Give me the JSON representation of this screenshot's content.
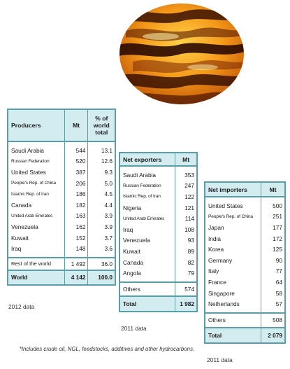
{
  "producers": {
    "headers": [
      "Producers",
      "Mt",
      "% of world total"
    ],
    "rows": [
      [
        "Saudi Arabia",
        "544",
        "13.1"
      ],
      [
        "Russian Federation",
        "520",
        "12.6"
      ],
      [
        "United States",
        "387",
        "9.3"
      ],
      [
        "People's Rep. of China",
        "206",
        "5.0"
      ],
      [
        "Islamic Rep. of Iran",
        "186",
        "4.5"
      ],
      [
        "Canada",
        "182",
        "4.4"
      ],
      [
        "United Arab Emirates",
        "163",
        "3.9"
      ],
      [
        "Venezuela",
        "162",
        "3.9"
      ],
      [
        "Kuwait",
        "152",
        "3.7"
      ],
      [
        "Iraq",
        "148",
        "3.6"
      ]
    ],
    "rest": [
      "Rest of the world",
      "1 492",
      "36.0"
    ],
    "total": [
      "World",
      "4 142",
      "100.0"
    ],
    "caption": "2012 data"
  },
  "exporters": {
    "headers": [
      "Net exporters",
      "Mt"
    ],
    "rows": [
      [
        "Saudi Arabia",
        "353"
      ],
      [
        "Russian Federation",
        "247"
      ],
      [
        "Islamic Rep. of Iran",
        "122"
      ],
      [
        "Nigeria",
        "121"
      ],
      [
        "United Arab Emirates",
        "114"
      ],
      [
        "Iraq",
        "108"
      ],
      [
        "Venezuela",
        "93"
      ],
      [
        "Kuwait",
        "89"
      ],
      [
        "Canada",
        "82"
      ],
      [
        "Angola",
        "79"
      ]
    ],
    "others": [
      "Others",
      "574"
    ],
    "total": [
      "Total",
      "1 982"
    ],
    "caption": "2011 data"
  },
  "importers": {
    "headers": [
      "Net importers",
      "Mt"
    ],
    "rows": [
      [
        "United States",
        "500"
      ],
      [
        "People's Rep. of China",
        "251"
      ],
      [
        "Japan",
        "177"
      ],
      [
        "India",
        "172"
      ],
      [
        "Korea",
        "125"
      ],
      [
        "Germany",
        "90"
      ],
      [
        "Italy",
        "77"
      ],
      [
        "France",
        "64"
      ],
      [
        "Singapore",
        "58"
      ],
      [
        "Netherlands",
        "57"
      ]
    ],
    "others": [
      "Others",
      "508"
    ],
    "total": [
      "Total",
      "2 079"
    ],
    "caption": "2011 data"
  },
  "footnote": "*Includes crude oil, NGL, feedstocks, additives and other hydrocarbons."
}
